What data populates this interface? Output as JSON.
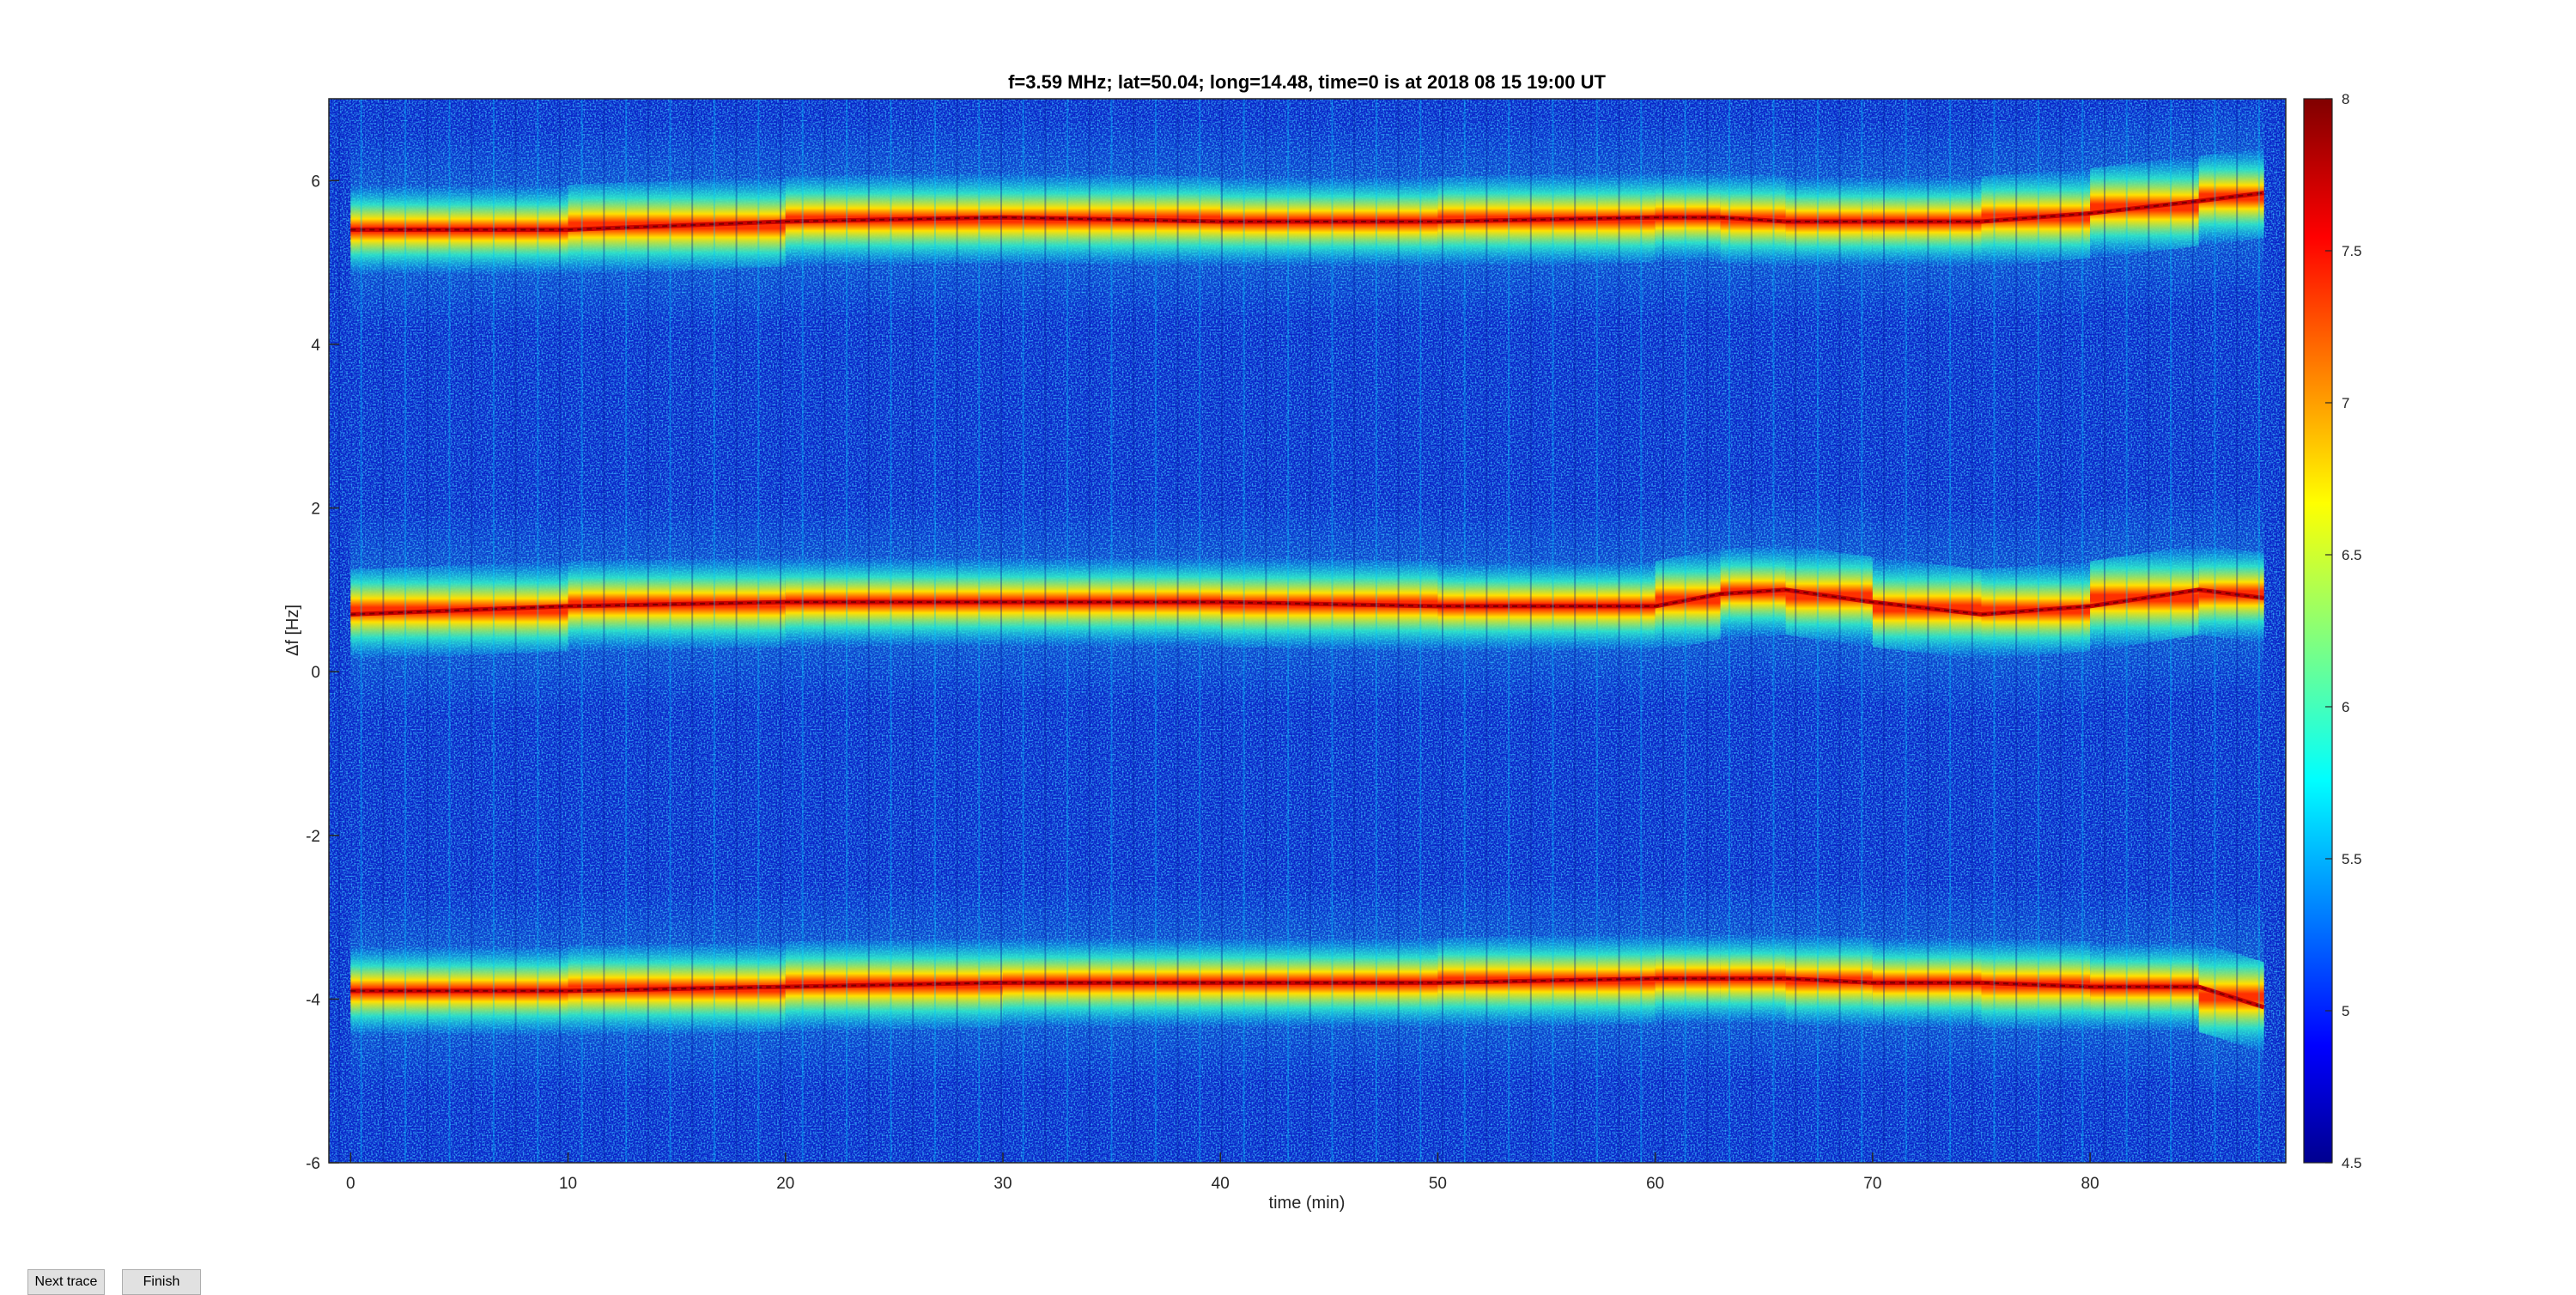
{
  "chart_data": {
    "type": "heatmap",
    "title": "f=3.59 MHz;  lat=50.04; long=14.48, time=0 is at 2018 08 15 19:00 UT",
    "xlabel": "time (min)",
    "ylabel": "Δf [Hz]",
    "xlim": [
      -1,
      89
    ],
    "ylim": [
      -6,
      7
    ],
    "xticks": [
      0,
      10,
      20,
      30,
      40,
      50,
      60,
      70,
      80
    ],
    "yticks": [
      -6,
      -4,
      -2,
      0,
      2,
      4,
      6
    ],
    "colorbar": {
      "range": [
        4.5,
        8
      ],
      "ticks": [
        "8",
        "7.5",
        "7",
        "6.5",
        "6",
        "5.5",
        "5",
        "4.5"
      ],
      "colormap": "jet"
    },
    "grid": false,
    "series": [
      {
        "x": [
          0,
          10,
          20,
          30,
          40,
          50,
          60,
          63,
          66,
          70,
          75,
          80,
          85,
          88
        ],
        "y": [
          5.4,
          5.4,
          5.5,
          5.55,
          5.5,
          5.5,
          5.55,
          5.55,
          5.5,
          5.5,
          5.5,
          5.6,
          5.75,
          5.85
        ]
      },
      {
        "x": [
          0,
          10,
          20,
          30,
          40,
          50,
          60,
          63,
          66,
          70,
          75,
          80,
          85,
          88
        ],
        "y": [
          0.7,
          0.8,
          0.85,
          0.85,
          0.85,
          0.8,
          0.8,
          0.95,
          1.0,
          0.85,
          0.7,
          0.8,
          1.0,
          0.9
        ]
      },
      {
        "x": [
          0,
          10,
          20,
          30,
          40,
          50,
          60,
          63,
          66,
          70,
          75,
          80,
          85,
          88
        ],
        "y": [
          -3.9,
          -3.9,
          -3.85,
          -3.8,
          -3.8,
          -3.8,
          -3.75,
          -3.75,
          -3.75,
          -3.8,
          -3.8,
          -3.85,
          -3.85,
          -4.1
        ]
      }
    ]
  },
  "controls": {
    "next_label": "Next trace",
    "finish_label": "Finish"
  }
}
